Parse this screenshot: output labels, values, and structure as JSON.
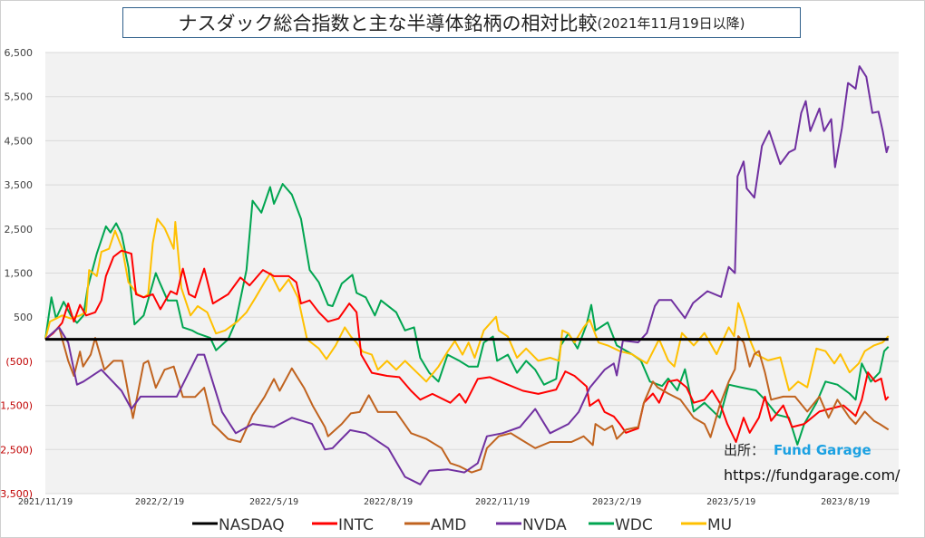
{
  "chart_data": {
    "type": "line",
    "title": "ナスダック総合指数と主な半導体銘柄の相対比較",
    "subtitle": "(2021年11月19日以降)",
    "xlabel": "",
    "ylabel": "",
    "x_unit": "months since 2021/11/19",
    "xlim": [
      0,
      22.4
    ],
    "ylim": [
      -3500,
      6500
    ],
    "yticks": [
      6500,
      5500,
      4500,
      3500,
      2500,
      1500,
      500,
      -500,
      -1500,
      -2500,
      -3500
    ],
    "ytick_labels": [
      "6,500",
      "5,500",
      "4,500",
      "3,500",
      "2,500",
      "1,500",
      "500",
      "(500)",
      "(1,500)",
      "(2,500)",
      "(3,500)"
    ],
    "xticks": [
      0,
      3,
      6,
      9,
      12,
      15,
      18,
      21
    ],
    "xtick_labels": [
      "2021/11/19",
      "2022/2/19",
      "2022/5/19",
      "2022/8/19",
      "2022/11/19",
      "2023/2/19",
      "2023/5/19",
      "2023/8/19"
    ],
    "grid": true,
    "legend_position": "bottom",
    "series": [
      {
        "name": "NASDAQ",
        "color": "#000000",
        "x": [
          0,
          22.13
        ],
        "y": [
          0,
          0
        ]
      },
      {
        "name": "INTC",
        "color": "#ff0000",
        "x": [
          0,
          0.2,
          0.44,
          0.6,
          0.75,
          0.91,
          1.07,
          1.31,
          1.47,
          1.59,
          1.79,
          2,
          2.26,
          2.38,
          2.58,
          2.82,
          3.02,
          3.29,
          3.45,
          3.61,
          3.77,
          3.93,
          4.17,
          4.4,
          4.8,
          5.12,
          5.36,
          5.71,
          6,
          6.39,
          6.59,
          6.71,
          6.94,
          7.18,
          7.42,
          7.7,
          7.98,
          8.17,
          8.29,
          8.57,
          8.97,
          9.29,
          9.6,
          9.84,
          10.16,
          10.63,
          10.87,
          11.03,
          11.35,
          11.67,
          12.14,
          12.54,
          12.94,
          13.41,
          13.65,
          13.89,
          14.21,
          14.29,
          14.52,
          14.68,
          14.92,
          15.08,
          15.24,
          15.56,
          15.71,
          15.95,
          16.11,
          16.35,
          16.59,
          16.83,
          17.02,
          17.3,
          17.5,
          17.7,
          17.9,
          18.13,
          18.33,
          18.49,
          18.73,
          18.89,
          19.05,
          19.37,
          19.6,
          19.92,
          20.32,
          20.63,
          20.95,
          21.27,
          21.43,
          21.59,
          21.78,
          21.94,
          22.06,
          22.13
        ],
        "y": [
          0,
          130,
          370,
          810,
          400,
          780,
          540,
          610,
          880,
          1430,
          1870,
          2010,
          1940,
          1020,
          950,
          1020,
          680,
          1090,
          1020,
          1600,
          1020,
          950,
          1600,
          810,
          1020,
          1400,
          1220,
          1570,
          1430,
          1430,
          1290,
          810,
          880,
          610,
          400,
          470,
          810,
          610,
          -350,
          -760,
          -830,
          -860,
          -1170,
          -1370,
          -1240,
          -1440,
          -1240,
          -1440,
          -900,
          -860,
          -1030,
          -1170,
          -1240,
          -1140,
          -730,
          -830,
          -1070,
          -1510,
          -1370,
          -1650,
          -1750,
          -1920,
          -2120,
          -2020,
          -1440,
          -1230,
          -1440,
          -960,
          -920,
          -1090,
          -1440,
          -1370,
          -1160,
          -1440,
          -1920,
          -2330,
          -1780,
          -2120,
          -1780,
          -1300,
          -1850,
          -1500,
          -1990,
          -1920,
          -1640,
          -1570,
          -1500,
          -1740,
          -1370,
          -750,
          -960,
          -890,
          -1370,
          -1300
        ]
      },
      {
        "name": "AMD",
        "color": "#c0631f",
        "x": [
          0,
          0.36,
          0.6,
          0.75,
          0.91,
          0.99,
          1.19,
          1.31,
          1.55,
          1.79,
          2.02,
          2.3,
          2.58,
          2.7,
          2.9,
          3.13,
          3.37,
          3.61,
          3.93,
          4.17,
          4.4,
          4.8,
          5.12,
          5.44,
          5.75,
          6,
          6.15,
          6.47,
          6.79,
          7.02,
          7.34,
          7.42,
          7.78,
          8.02,
          8.25,
          8.49,
          8.73,
          9.21,
          9.6,
          10,
          10.4,
          10.63,
          10.87,
          11.19,
          11.43,
          11.59,
          11.9,
          12.22,
          12.46,
          12.86,
          13.25,
          13.81,
          14.13,
          14.37,
          14.44,
          14.68,
          14.88,
          15,
          15.24,
          15.56,
          15.71,
          15.95,
          16.07,
          16.35,
          16.67,
          17.02,
          17.3,
          17.46,
          17.7,
          17.94,
          18.1,
          18.19,
          18.33,
          18.49,
          18.61,
          18.73,
          18.89,
          19.05,
          19.37,
          19.68,
          20,
          20.32,
          20.56,
          20.79,
          21.11,
          21.27,
          21.51,
          21.75,
          21.9,
          22.13
        ],
        "y": [
          0,
          270,
          -490,
          -830,
          -280,
          -620,
          -350,
          30,
          -690,
          -490,
          -490,
          -1790,
          -550,
          -490,
          -1100,
          -690,
          -620,
          -1310,
          -1310,
          -1100,
          -1920,
          -2260,
          -2330,
          -1720,
          -1310,
          -900,
          -1170,
          -660,
          -1100,
          -1510,
          -1990,
          -2200,
          -1920,
          -1680,
          -1650,
          -1270,
          -1650,
          -1650,
          -2130,
          -2260,
          -2470,
          -2810,
          -2880,
          -3020,
          -2950,
          -2470,
          -2200,
          -2130,
          -2260,
          -2470,
          -2330,
          -2330,
          -2200,
          -2400,
          -1920,
          -2060,
          -1960,
          -2260,
          -2050,
          -1990,
          -1440,
          -960,
          -1090,
          -1230,
          -1370,
          -1780,
          -1920,
          -2220,
          -1500,
          -960,
          -680,
          70,
          -70,
          -620,
          -340,
          -270,
          -750,
          -1370,
          -1300,
          -1300,
          -1640,
          -1300,
          -1780,
          -1370,
          -1780,
          -1920,
          -1640,
          -1850,
          -1920,
          -2050
        ]
      },
      {
        "name": "NVDA",
        "color": "#7030a0",
        "x": [
          0,
          0.36,
          0.6,
          0.83,
          1,
          1.47,
          2,
          2.26,
          2.5,
          3,
          3.45,
          4,
          4.17,
          4.64,
          5,
          5.44,
          6,
          6.47,
          7,
          7.34,
          7.54,
          8,
          8.41,
          9,
          9.44,
          9.84,
          10.08,
          10.56,
          11,
          11.35,
          11.59,
          12,
          12.46,
          12.86,
          13.25,
          13.73,
          14,
          14.29,
          14.68,
          14.92,
          15,
          15.16,
          15.56,
          15.79,
          16,
          16.11,
          16.43,
          16.79,
          17,
          17.38,
          17.74,
          17.94,
          18.1,
          18.17,
          18.33,
          18.41,
          18.61,
          18.81,
          19,
          19.29,
          19.52,
          19.68,
          19.84,
          19.96,
          20.08,
          20.32,
          20.44,
          20.63,
          20.73,
          20.91,
          21.07,
          21.27,
          21.37,
          21.55,
          21.71,
          21.87,
          21.98,
          22.08,
          22.13
        ],
        "y": [
          0,
          270,
          -75,
          -1030,
          -960,
          -690,
          -1170,
          -1580,
          -1300,
          -1300,
          -1300,
          -350,
          -350,
          -1650,
          -2130,
          -1920,
          -1990,
          -1780,
          -1920,
          -2500,
          -2470,
          -2060,
          -2130,
          -2470,
          -3120,
          -3290,
          -2980,
          -2950,
          -3020,
          -2810,
          -2200,
          -2130,
          -1990,
          -1580,
          -2130,
          -1920,
          -1650,
          -1100,
          -690,
          -550,
          -820,
          -30,
          -70,
          140,
          750,
          890,
          890,
          480,
          820,
          1090,
          960,
          1640,
          1500,
          3690,
          4030,
          3420,
          3210,
          4380,
          4720,
          3970,
          4240,
          4310,
          5130,
          5400,
          4720,
          5230,
          4720,
          4990,
          3900,
          4790,
          5810,
          5680,
          6190,
          5950,
          5130,
          5160,
          4720,
          4240,
          4380
        ]
      },
      {
        "name": "WDC",
        "color": "#00a550",
        "x": [
          0,
          0.16,
          0.28,
          0.48,
          0.67,
          0.83,
          1,
          1.11,
          1.35,
          1.59,
          1.71,
          1.86,
          2,
          2.18,
          2.34,
          2.58,
          2.74,
          2.9,
          3,
          3.21,
          3.45,
          3.61,
          3.85,
          4,
          4.33,
          4.48,
          4.8,
          5,
          5.28,
          5.44,
          5.67,
          5.9,
          6,
          6.23,
          6.47,
          6.71,
          6.94,
          7.18,
          7.42,
          7.54,
          7.78,
          8.06,
          8.17,
          8.41,
          8.65,
          8.81,
          9.21,
          9.44,
          9.68,
          9.84,
          10.08,
          10.32,
          10.56,
          10.87,
          11.11,
          11.35,
          11.51,
          11.75,
          11.86,
          12.14,
          12.38,
          12.62,
          12.86,
          13.09,
          13.41,
          13.53,
          13.73,
          13.97,
          14.21,
          14.33,
          14.44,
          14.76,
          15,
          15.4,
          15.63,
          15.87,
          16.19,
          16.35,
          16.59,
          16.79,
          17.02,
          17.3,
          17.7,
          17.94,
          18.25,
          18.65,
          18.89,
          19.2,
          19.52,
          19.74,
          19.92,
          20.24,
          20.48,
          20.79,
          21.11,
          21.27,
          21.43,
          21.67,
          21.9,
          22.02,
          22.13
        ],
        "y": [
          0,
          950,
          470,
          850,
          540,
          370,
          540,
          1160,
          1940,
          2560,
          2420,
          2630,
          2390,
          1630,
          335,
          540,
          1020,
          1500,
          1290,
          880,
          880,
          270,
          200,
          130,
          30,
          -250,
          0,
          400,
          1570,
          3140,
          2870,
          3450,
          3070,
          3520,
          3280,
          2730,
          1570,
          1290,
          780,
          750,
          1260,
          1460,
          1050,
          950,
          540,
          880,
          610,
          200,
          270,
          -420,
          -760,
          -960,
          -350,
          -490,
          -620,
          -620,
          -75,
          60,
          -490,
          -350,
          -760,
          -490,
          -690,
          -1030,
          -900,
          -140,
          130,
          -210,
          340,
          780,
          200,
          380,
          -140,
          -340,
          -480,
          -960,
          -1060,
          -890,
          -1160,
          -680,
          -1640,
          -1440,
          -1780,
          -1030,
          -1090,
          -1160,
          -1370,
          -1710,
          -1780,
          -2390,
          -1920,
          -1440,
          -960,
          -1030,
          -1230,
          -1370,
          -550,
          -960,
          -750,
          -270,
          -170
        ]
      },
      {
        "name": "MU",
        "color": "#ffc000",
        "x": [
          0,
          0.12,
          0.28,
          0.44,
          0.67,
          0.91,
          1.07,
          1.15,
          1.35,
          1.47,
          1.67,
          1.83,
          2.02,
          2.18,
          2.42,
          2.58,
          2.7,
          2.82,
          2.94,
          3.13,
          3.37,
          3.41,
          3.57,
          3.81,
          4,
          4.25,
          4.48,
          4.72,
          5.04,
          5.28,
          5.52,
          5.75,
          5.91,
          6.15,
          6.39,
          6.63,
          6.87,
          7.18,
          7.38,
          7.62,
          7.86,
          8.02,
          8.17,
          8.33,
          8.57,
          8.73,
          8.97,
          9.21,
          9.44,
          9.68,
          10,
          10.32,
          10.56,
          10.75,
          10.95,
          11.11,
          11.27,
          11.51,
          11.83,
          11.9,
          12.14,
          12.38,
          12.62,
          12.94,
          13.25,
          13.49,
          13.57,
          13.73,
          13.89,
          14.13,
          14.29,
          14.52,
          14.76,
          15.08,
          15.4,
          15.79,
          16.11,
          16.35,
          16.51,
          16.71,
          17.02,
          17.3,
          17.62,
          17.94,
          18.08,
          18.19,
          18.33,
          18.49,
          18.65,
          18.97,
          19.29,
          19.52,
          19.76,
          20,
          20.24,
          20.48,
          20.71,
          20.87,
          21.11,
          21.35,
          21.51,
          21.75,
          21.98,
          22.13
        ],
        "y": [
          0,
          400,
          470,
          540,
          470,
          540,
          610,
          1570,
          1430,
          1980,
          2050,
          2460,
          2050,
          1290,
          1020,
          950,
          1020,
          2180,
          2730,
          2520,
          2050,
          2660,
          1160,
          540,
          750,
          610,
          130,
          200,
          400,
          610,
          950,
          1290,
          1500,
          1090,
          1360,
          950,
          0,
          -210,
          -450,
          -140,
          270,
          60,
          -75,
          -280,
          -350,
          -690,
          -490,
          -690,
          -490,
          -690,
          -960,
          -620,
          -280,
          -40,
          -350,
          -75,
          -420,
          200,
          510,
          200,
          60,
          -420,
          -210,
          -490,
          -420,
          -490,
          200,
          130,
          -75,
          270,
          440,
          -75,
          -140,
          -270,
          -340,
          -550,
          0,
          -480,
          -620,
          140,
          -140,
          140,
          -340,
          270,
          70,
          820,
          480,
          0,
          -340,
          -480,
          -410,
          -1160,
          -960,
          -1090,
          -210,
          -270,
          -550,
          -340,
          -750,
          -550,
          -270,
          -140,
          -70,
          70
        ]
      }
    ]
  },
  "source": {
    "label": "出所：",
    "brand": "Fund Garage",
    "url": "https://fundgarage.com/",
    "brand_color": "#1ba1e2"
  },
  "colors": {
    "negative_tick": "#c00000",
    "positive_tick": "#404040",
    "plot_bg": "#f2f2f2",
    "grid": "#d9d9d9"
  }
}
